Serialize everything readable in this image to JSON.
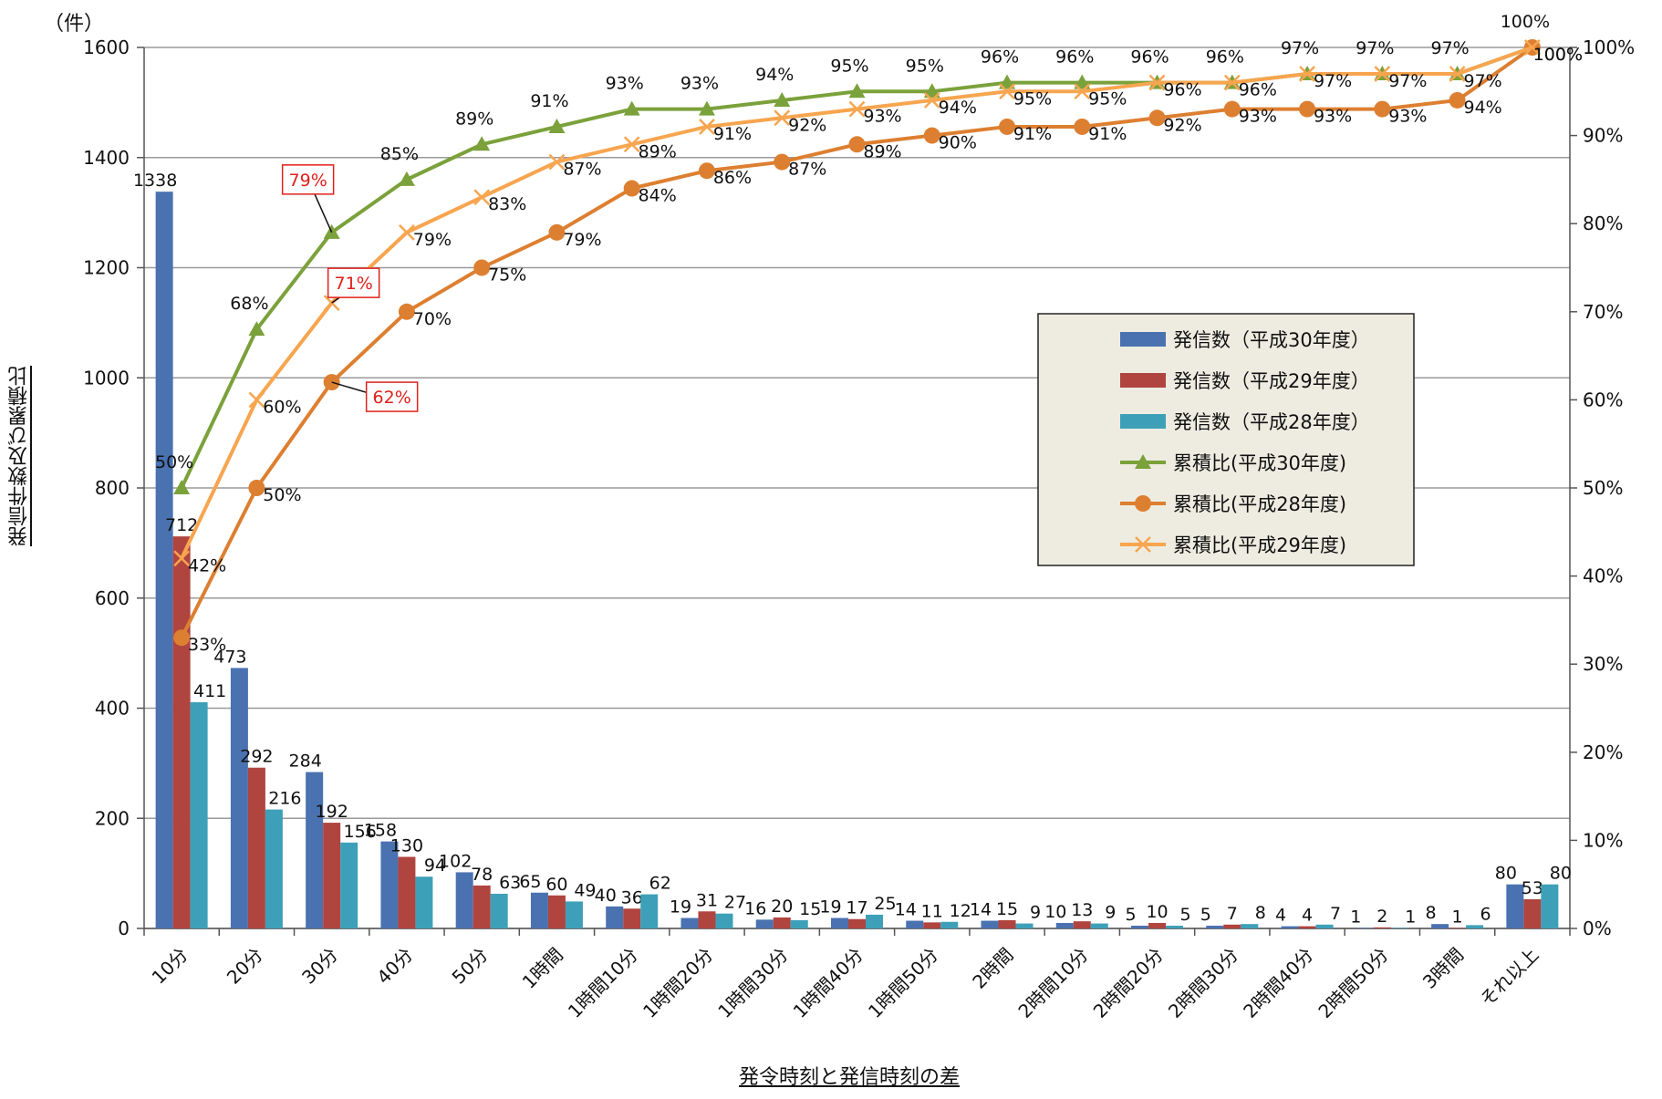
{
  "chart_data": {
    "type": "bar",
    "unit_label": "（件）",
    "ylabel": "発信件数及び累積比",
    "xlabel": "発令時刻と発信時刻の差",
    "ylim": [
      0,
      1600
    ],
    "y_ticks": [
      "0",
      "200",
      "400",
      "600",
      "800",
      "1000",
      "1200",
      "1400",
      "1600"
    ],
    "y2lim": [
      0,
      100
    ],
    "y2_ticks": [
      "0%",
      "10%",
      "20%",
      "30%",
      "40%",
      "50%",
      "60%",
      "70%",
      "80%",
      "90%",
      "100%"
    ],
    "categories": [
      "10分",
      "20分",
      "30分",
      "40分",
      "50分",
      "1時間",
      "1時間10分",
      "1時間20分",
      "1時間30分",
      "1時間40分",
      "1時間50分",
      "2時間",
      "2時間10分",
      "2時間20分",
      "2時間30分",
      "2時間40分",
      "2時間50分",
      "3時間",
      "それ以上"
    ],
    "grid": true,
    "legend_position": "right",
    "bar_series": [
      {
        "name": "発信数（平成30年度）",
        "color": "#4a72b0",
        "values": [
          1338,
          473,
          284,
          158,
          102,
          65,
          40,
          19,
          16,
          19,
          14,
          14,
          10,
          5,
          5,
          4,
          1,
          8,
          80
        ]
      },
      {
        "name": "発信数（平成29年度）",
        "color": "#b0443f",
        "values": [
          712,
          292,
          192,
          130,
          78,
          60,
          36,
          31,
          20,
          17,
          11,
          15,
          13,
          10,
          7,
          4,
          2,
          1,
          53
        ]
      },
      {
        "name": "発信数（平成28年度）",
        "color": "#3ea0b8",
        "values": [
          411,
          216,
          156,
          94,
          63,
          49,
          62,
          27,
          15,
          25,
          12,
          9,
          9,
          5,
          8,
          7,
          1,
          6,
          80
        ]
      }
    ],
    "line_series": [
      {
        "name": "累積比(平成30年度)",
        "color": "#7ba13b",
        "marker": "triangle",
        "values": [
          50,
          68,
          79,
          85,
          89,
          91,
          93,
          93,
          94,
          95,
          95,
          96,
          96,
          96,
          96,
          97,
          97,
          97,
          100
        ],
        "labels": [
          "50%",
          "68%",
          "79%",
          "85%",
          "89%",
          "91%",
          "93%",
          "93%",
          "94%",
          "95%",
          "95%",
          "96%",
          "96%",
          "96%",
          "96%",
          "97%",
          "97%",
          "97%",
          "100%"
        ]
      },
      {
        "name": "累積比(平成28年度)",
        "color": "#dd7f30",
        "marker": "circle",
        "values": [
          33,
          50,
          62,
          70,
          75,
          79,
          84,
          86,
          87,
          89,
          90,
          91,
          91,
          92,
          93,
          93,
          93,
          94,
          100
        ],
        "labels": [
          "33%",
          "50%",
          "62%",
          "70%",
          "75%",
          "79%",
          "84%",
          "86%",
          "87%",
          "89%",
          "90%",
          "91%",
          "91%",
          "92%",
          "93%",
          "93%",
          "93%",
          "94%",
          "100%"
        ]
      },
      {
        "name": "累積比(平成29年度)",
        "color": "#f7a54f",
        "marker": "x",
        "values": [
          42,
          60,
          71,
          79,
          83,
          87,
          89,
          91,
          92,
          93,
          94,
          95,
          95,
          96,
          96,
          97,
          97,
          97,
          100
        ],
        "labels": [
          "42%",
          "60%",
          "71%",
          "79%",
          "83%",
          "87%",
          "89%",
          "91%",
          "92%",
          "93%",
          "94%",
          "95%",
          "95%",
          "96%",
          "96%",
          "97%",
          "97%",
          "97%",
          "100%"
        ]
      }
    ],
    "highlight_color": "#e0201b",
    "highlights": [
      {
        "series": 0,
        "index": 2
      },
      {
        "series": 2,
        "index": 2
      },
      {
        "series": 1,
        "index": 2
      }
    ],
    "legend_order": [
      {
        "kind": "bar",
        "index": 0
      },
      {
        "kind": "bar",
        "index": 1
      },
      {
        "kind": "bar",
        "index": 2
      },
      {
        "kind": "line",
        "index": 0
      },
      {
        "kind": "line",
        "index": 1
      },
      {
        "kind": "line",
        "index": 2
      }
    ]
  }
}
